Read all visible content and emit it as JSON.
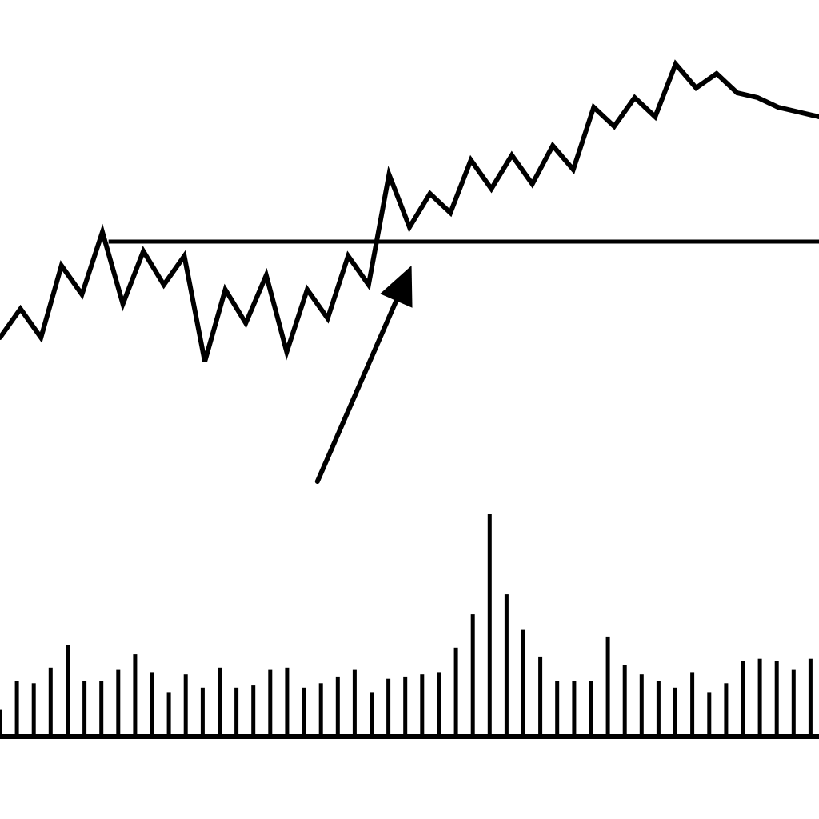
{
  "chart_data": [
    {
      "type": "line",
      "title": "",
      "xlabel": "",
      "ylabel": "",
      "grid": false,
      "legend": "none",
      "color": "#000000",
      "ylim": [
        0,
        100
      ],
      "x": [
        0,
        1,
        2,
        3,
        4,
        5,
        6,
        7,
        8,
        9,
        10,
        11,
        12,
        13,
        14,
        15,
        16,
        17,
        18,
        19,
        20,
        21,
        22,
        23,
        24,
        25,
        26,
        27,
        28,
        29,
        30,
        31,
        32,
        33,
        34,
        35,
        36,
        37,
        38,
        39,
        40
      ],
      "series": [
        {
          "values": [
            40,
            46,
            40,
            55,
            49,
            62,
            47,
            58,
            51,
            57,
            35,
            50,
            43,
            53,
            37,
            50,
            44,
            57,
            51,
            74,
            63,
            70,
            66,
            77,
            71,
            78,
            72,
            80,
            75,
            88,
            84,
            90,
            86,
            97,
            92,
            95,
            91,
            90,
            88,
            87,
            86
          ]
        }
      ],
      "reference_line": {
        "y": 60,
        "x_start": 5.3
      },
      "annotation": {
        "type": "arrow",
        "from": {
          "x": 15.5,
          "y": 10
        },
        "to": {
          "x": 20.1,
          "y": 55
        }
      }
    },
    {
      "type": "bar",
      "title": "",
      "xlabel": "",
      "ylabel": "",
      "grid": false,
      "legend": "none",
      "color": "#000000",
      "ylim": [
        0,
        100
      ],
      "values": [
        12,
        25,
        24,
        31,
        41,
        25,
        25,
        30,
        37,
        29,
        20,
        28,
        22,
        31,
        22,
        23,
        30,
        31,
        22,
        24,
        27,
        30,
        20,
        26,
        27,
        28,
        29,
        40,
        55,
        100,
        64,
        48,
        36,
        25,
        25,
        25,
        45,
        32,
        28,
        25,
        22,
        29,
        20,
        24,
        34,
        35,
        34,
        30,
        35
      ]
    }
  ]
}
